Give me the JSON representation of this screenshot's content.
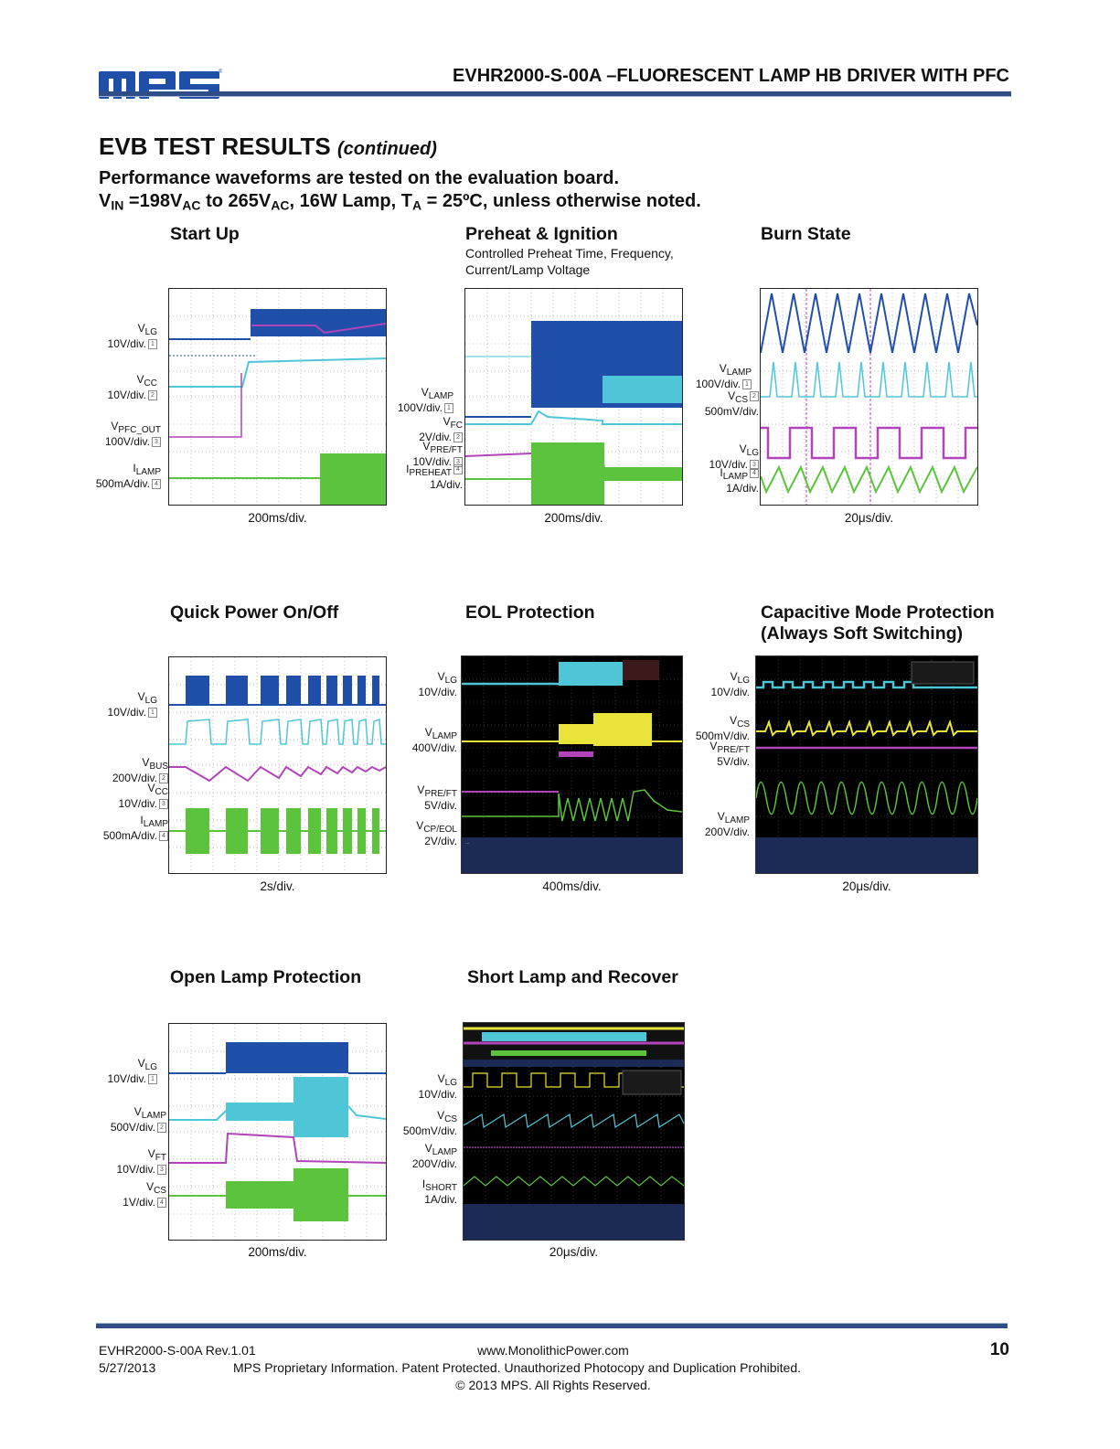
{
  "header": {
    "logo_text": "MPS",
    "title": "EVHR2000-S-00A –FLUORESCENT LAMP HB DRIVER WITH PFC"
  },
  "section": {
    "title": "EVB TEST RESULTS",
    "continued": "(continued)",
    "perf_line1": "Performance waveforms are tested on the evaluation board."
  },
  "panels": {
    "startup": {
      "title": "Start Up",
      "time": "200ms/div."
    },
    "preheat": {
      "title": "Preheat & Ignition",
      "subtitle1": "Controlled Preheat Time, Frequency,",
      "subtitle2": "Current/Lamp Voltage",
      "time": "200ms/div."
    },
    "burn": {
      "title": "Burn State",
      "time": "20μs/div."
    },
    "quick": {
      "title": "Quick Power On/Off",
      "time": "2s/div."
    },
    "eol": {
      "title": "EOL Protection",
      "time": "400ms/div."
    },
    "cap": {
      "title1": "Capacitive Mode Protection",
      "title2": "(Always Soft Switching)",
      "time": "20μs/div."
    },
    "openlamp": {
      "title": "Open Lamp Protection",
      "time": "200ms/div."
    },
    "shortlamp": {
      "title": "Short Lamp and Recover",
      "time": "20μs/div."
    }
  },
  "scale": {
    "v10": "10V/div.",
    "v100": "100V/div.",
    "v2": "2V/div.",
    "v200": "200V/div.",
    "v400": "400V/div.",
    "v5": "5V/div.",
    "v500": "500V/div.",
    "v1": "1V/div.",
    "mv500": "500mV/div.",
    "ma500": "500mA/div.",
    "a1": "1A/div."
  },
  "footer": {
    "doc": "EVHR2000-S-00A Rev.1.01",
    "date": "5/27/2013",
    "url": "www.MonolithicPower.com",
    "proprietary": "MPS Proprietary Information. Patent Protected. Unauthorized Photocopy and Duplication Prohibited.",
    "copyright": "© 2013 MPS. All Rights Reserved.",
    "page": "10"
  },
  "colors": {
    "blue": "#1f4fa8",
    "cyan": "#4ec6d8",
    "magenta": "#b144b8",
    "green": "#5cc43c",
    "yellow": "#e8e43a",
    "rule": "#2f4d86"
  }
}
